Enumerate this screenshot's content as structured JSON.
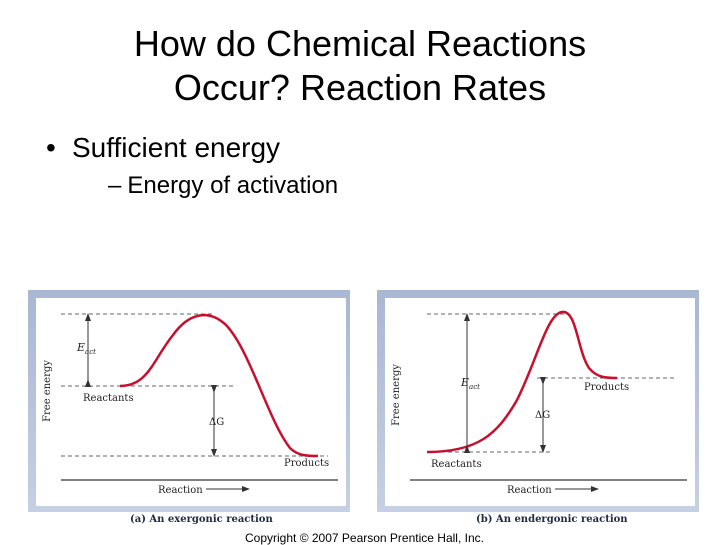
{
  "title": {
    "line1": "How do Chemical Reactions",
    "line2": "Occur? Reaction Rates"
  },
  "bullets": {
    "level1": "Sufficient energy",
    "level2": "Energy of activation"
  },
  "figure_a": {
    "y_axis": "Free energy",
    "x_axis": "Reaction",
    "eact_label": "E",
    "eact_sub": "act",
    "reactants": "Reactants",
    "products": "Products",
    "delta_g": "ΔG",
    "caption": "(a) An exergonic reaction"
  },
  "figure_b": {
    "y_axis": "Free energy",
    "x_axis": "Reaction",
    "eact_label": "E",
    "eact_sub": "act",
    "reactants": "Reactants",
    "products": "Products",
    "delta_g": "ΔG",
    "caption": "(b) An endergonic reaction"
  },
  "copyright": "Copyright © 2007 Pearson Prentice Hall, Inc."
}
